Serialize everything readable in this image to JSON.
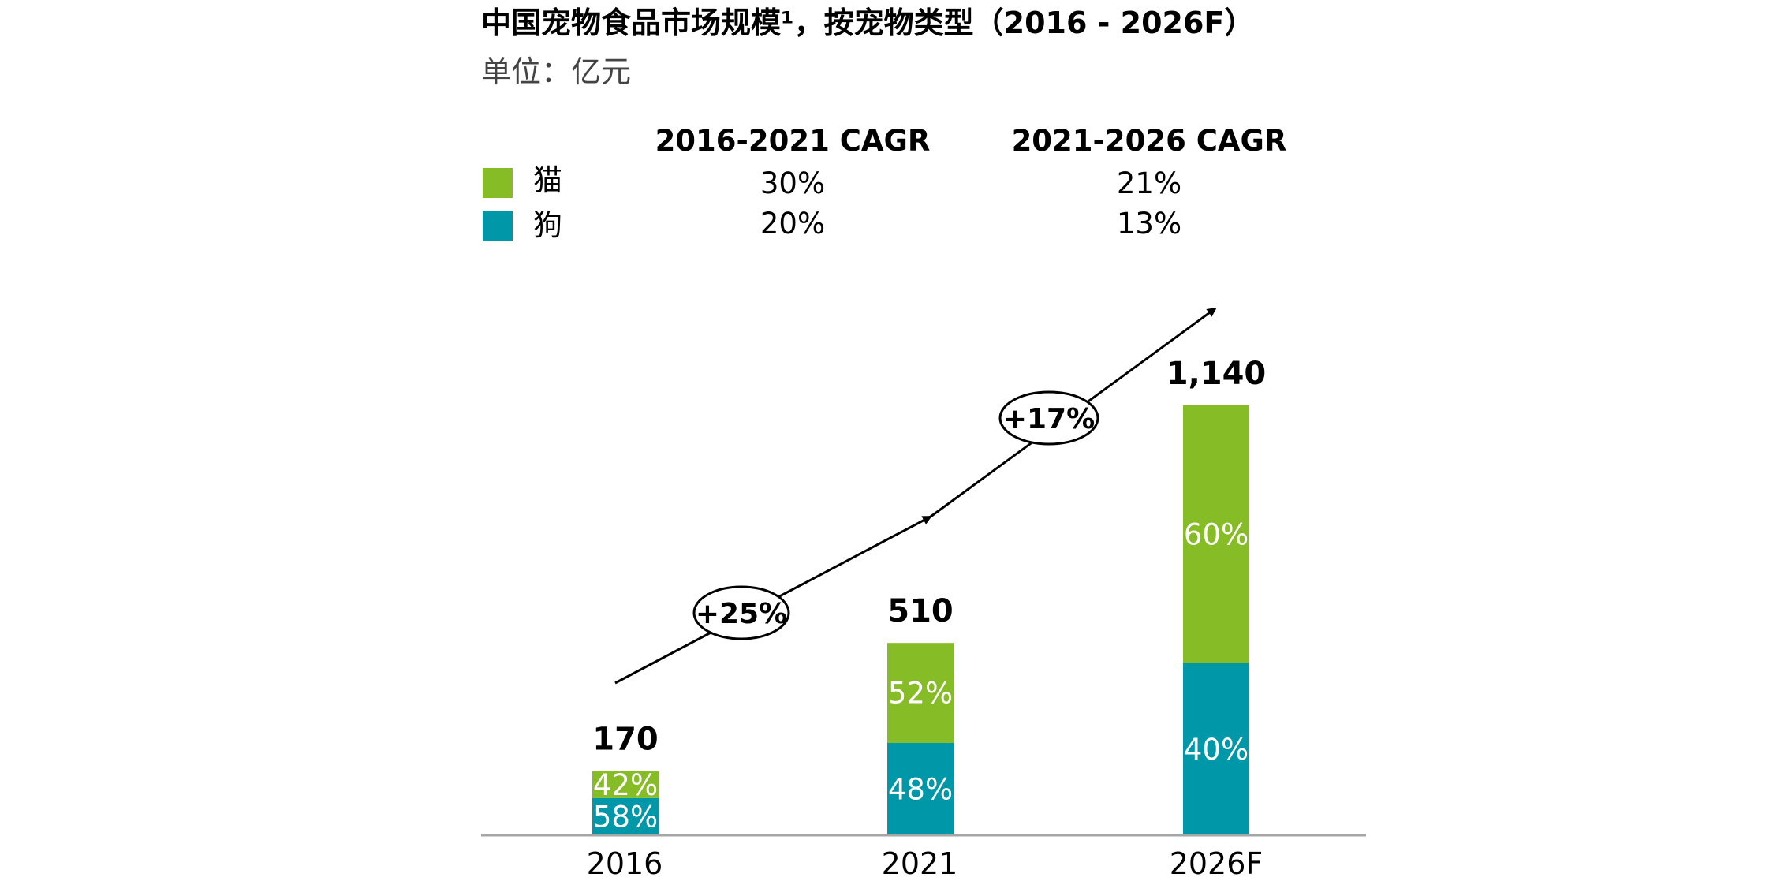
{
  "title": "中国宠物食品市场规模¹，按宠物类型（2016 - 2026F）",
  "unit": "单位：亿元",
  "cagr_table": {
    "headers": [
      "2016-2021 CAGR",
      "2021-2026 CAGR"
    ],
    "rows": [
      {
        "label": "猫",
        "color": "#86bc25",
        "values": [
          "30%",
          "21%"
        ]
      },
      {
        "label": "狗",
        "color": "#0097a9",
        "values": [
          "20%",
          "13%"
        ]
      }
    ]
  },
  "chart_data": {
    "type": "bar",
    "stacked": true,
    "categories": [
      "2016",
      "2021",
      "2026F"
    ],
    "totals": [
      170,
      510,
      1140
    ],
    "total_labels": [
      "170",
      "510",
      "1,140"
    ],
    "series": [
      {
        "name": "狗",
        "color": "#0097a9",
        "share": [
          58,
          48,
          40
        ],
        "labels": [
          "58%",
          "48%",
          "40%"
        ]
      },
      {
        "name": "猫",
        "color": "#86bc25",
        "share": [
          42,
          52,
          60
        ],
        "labels": [
          "42%",
          "52%",
          "60%"
        ]
      }
    ],
    "growth_labels": [
      "+25%",
      "+17%"
    ],
    "ylim": [
      0,
      1140
    ]
  }
}
